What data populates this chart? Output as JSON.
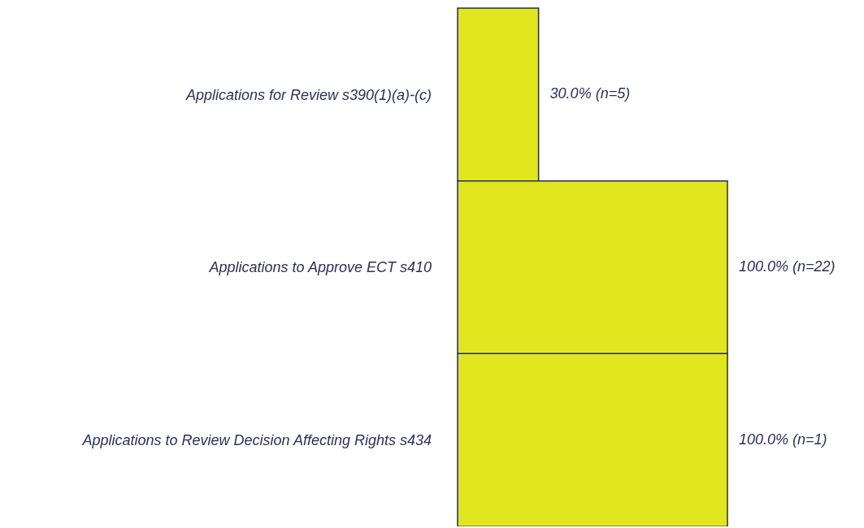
{
  "chart_data": {
    "type": "bar",
    "orientation": "horizontal",
    "categories": [
      "Applications for Review s390(1)(a)-(c)",
      "Applications to Approve ECT s410",
      "Applications to Review Decision Affecting Rights s434"
    ],
    "values": [
      30,
      100,
      100
    ],
    "value_labels": [
      "30.0% (n=5)",
      "100.0% (n=22)",
      "100.0% (n=1)"
    ],
    "color": "#e1e61f"
  }
}
